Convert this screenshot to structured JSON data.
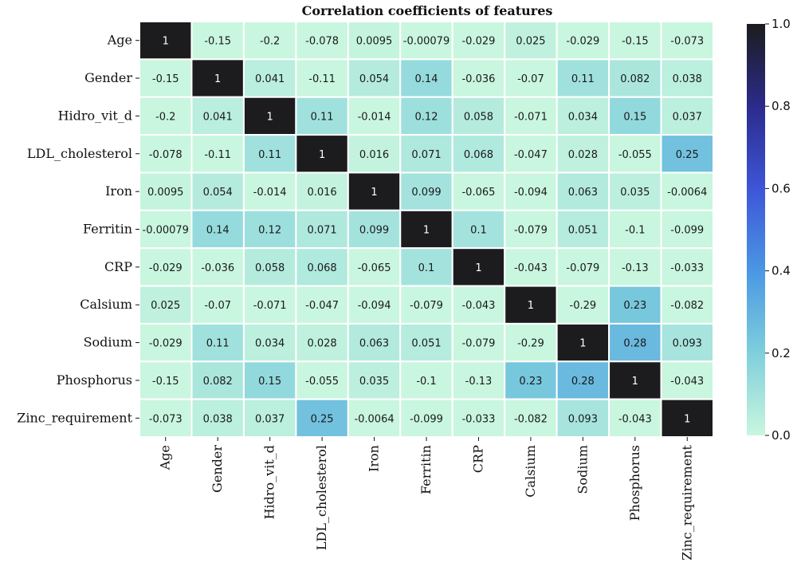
{
  "chart_data": {
    "type": "heatmap",
    "title": "Correlation coefficients of features",
    "labels": [
      "Age",
      "Gender",
      "Hidro_vit_d",
      "LDL_cholesterol",
      "Iron",
      "Ferritin",
      "CRP",
      "Calsium",
      "Sodium",
      "Phosphorus",
      "Zinc_requirement"
    ],
    "matrix": [
      [
        1,
        -0.15,
        -0.2,
        -0.078,
        0.0095,
        -0.00079,
        -0.029,
        0.025,
        -0.029,
        -0.15,
        -0.073
      ],
      [
        -0.15,
        1,
        0.041,
        -0.11,
        0.054,
        0.14,
        -0.036,
        -0.07,
        0.11,
        0.082,
        0.038
      ],
      [
        -0.2,
        0.041,
        1,
        0.11,
        -0.014,
        0.12,
        0.058,
        -0.071,
        0.034,
        0.15,
        0.037
      ],
      [
        -0.078,
        -0.11,
        0.11,
        1,
        0.016,
        0.071,
        0.068,
        -0.047,
        0.028,
        -0.055,
        0.25
      ],
      [
        0.0095,
        0.054,
        -0.014,
        0.016,
        1,
        0.099,
        -0.065,
        -0.094,
        0.063,
        0.035,
        -0.0064
      ],
      [
        -0.00079,
        0.14,
        0.12,
        0.071,
        0.099,
        1,
        0.1,
        -0.079,
        0.051,
        -0.1,
        -0.099
      ],
      [
        -0.029,
        -0.036,
        0.058,
        0.068,
        -0.065,
        0.1,
        1,
        -0.043,
        -0.079,
        -0.13,
        -0.033
      ],
      [
        0.025,
        -0.07,
        -0.071,
        -0.047,
        -0.094,
        -0.079,
        -0.043,
        1,
        -0.29,
        0.23,
        -0.082
      ],
      [
        -0.029,
        0.11,
        0.034,
        0.028,
        0.063,
        0.051,
        -0.079,
        -0.29,
        1,
        0.28,
        0.093
      ],
      [
        -0.15,
        0.082,
        0.15,
        -0.055,
        0.035,
        -0.1,
        -0.13,
        0.23,
        0.28,
        1,
        -0.043
      ],
      [
        -0.073,
        0.038,
        0.037,
        0.25,
        -0.0064,
        -0.099,
        -0.033,
        -0.082,
        0.093,
        -0.043,
        1
      ]
    ],
    "cell_text": [
      [
        "1",
        "-0.15",
        "-0.2",
        "-0.078",
        "0.0095",
        "-0.00079",
        "-0.029",
        "0.025",
        "-0.029",
        "-0.15",
        "-0.073"
      ],
      [
        "-0.15",
        "1",
        "0.041",
        "-0.11",
        "0.054",
        "0.14",
        "-0.036",
        "-0.07",
        "0.11",
        "0.082",
        "0.038"
      ],
      [
        "-0.2",
        "0.041",
        "1",
        "0.11",
        "-0.014",
        "0.12",
        "0.058",
        "-0.071",
        "0.034",
        "0.15",
        "0.037"
      ],
      [
        "-0.078",
        "-0.11",
        "0.11",
        "1",
        "0.016",
        "0.071",
        "0.068",
        "-0.047",
        "0.028",
        "-0.055",
        "0.25"
      ],
      [
        "0.0095",
        "0.054",
        "-0.014",
        "0.016",
        "1",
        "0.099",
        "-0.065",
        "-0.094",
        "0.063",
        "0.035",
        "-0.0064"
      ],
      [
        "-0.00079",
        "0.14",
        "0.12",
        "0.071",
        "0.099",
        "1",
        "0.1",
        "-0.079",
        "0.051",
        "-0.1",
        "-0.099"
      ],
      [
        "-0.029",
        "-0.036",
        "0.058",
        "0.068",
        "-0.065",
        "0.1",
        "1",
        "-0.043",
        "-0.079",
        "-0.13",
        "-0.033"
      ],
      [
        "0.025",
        "-0.07",
        "-0.071",
        "-0.047",
        "-0.094",
        "-0.079",
        "-0.043",
        "1",
        "-0.29",
        "0.23",
        "-0.082"
      ],
      [
        "-0.029",
        "0.11",
        "0.034",
        "0.028",
        "0.063",
        "0.051",
        "-0.079",
        "-0.29",
        "1",
        "0.28",
        "0.093"
      ],
      [
        "-0.15",
        "0.082",
        "0.15",
        "-0.055",
        "0.035",
        "-0.1",
        "-0.13",
        "0.23",
        "0.28",
        "1",
        "-0.043"
      ],
      [
        "-0.073",
        "0.038",
        "0.037",
        "0.25",
        "-0.0064",
        "-0.099",
        "-0.033",
        "-0.082",
        "0.093",
        "-0.043",
        "1"
      ]
    ],
    "colorbar": {
      "range": [
        0,
        1
      ],
      "ticks": [
        0.0,
        0.2,
        0.4,
        0.6,
        0.8,
        1.0
      ],
      "tick_labels": [
        "0.0",
        "0.2",
        "0.4",
        "0.6",
        "0.8",
        "1.0"
      ],
      "colormap": [
        {
          "value": 0.0,
          "color": "#c9f6de"
        },
        {
          "value": 0.2,
          "color": "#7fcfdc"
        },
        {
          "value": 0.4,
          "color": "#4a97e4"
        },
        {
          "value": 0.6,
          "color": "#3e55d8"
        },
        {
          "value": 0.8,
          "color": "#2b2b8c"
        },
        {
          "value": 1.0,
          "color": "#1c1c1e"
        }
      ]
    },
    "cell_border_color": "#ffffff",
    "legend_position": "right"
  }
}
